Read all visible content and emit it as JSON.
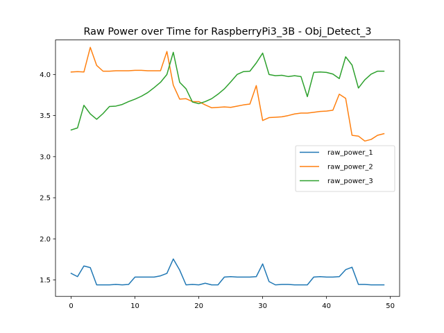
{
  "chart_data": {
    "type": "line",
    "title": "Raw Power over Time for RaspberryPi3_3B - Obj_Detect_3",
    "xlabel": "",
    "ylabel": "",
    "xlim": [
      -2.45,
      51.45
    ],
    "ylim": [
      1.3,
      4.42
    ],
    "xticks": [
      0,
      10,
      20,
      30,
      40,
      50
    ],
    "yticks": [
      1.5,
      2.0,
      2.5,
      3.0,
      3.5,
      4.0
    ],
    "xtick_labels": [
      "0",
      "10",
      "20",
      "30",
      "40",
      "50"
    ],
    "ytick_labels": [
      "1.5",
      "2.0",
      "2.5",
      "3.0",
      "3.5",
      "4.0"
    ],
    "grid": false,
    "legend_position": "center-right",
    "x": [
      0,
      1,
      2,
      3,
      4,
      5,
      6,
      7,
      8,
      9,
      10,
      11,
      12,
      13,
      14,
      15,
      16,
      17,
      18,
      19,
      20,
      21,
      22,
      23,
      24,
      25,
      26,
      27,
      28,
      29,
      30,
      31,
      32,
      33,
      34,
      35,
      36,
      37,
      38,
      39,
      40,
      41,
      42,
      43,
      44,
      45,
      46,
      47,
      48,
      49
    ],
    "series": [
      {
        "name": "raw_power_1",
        "color": "#1f77b4",
        "values": [
          1.58,
          1.54,
          1.67,
          1.65,
          1.44,
          1.44,
          1.44,
          1.445,
          1.44,
          1.445,
          1.535,
          1.535,
          1.535,
          1.535,
          1.55,
          1.58,
          1.755,
          1.62,
          1.44,
          1.445,
          1.44,
          1.46,
          1.44,
          1.44,
          1.535,
          1.54,
          1.535,
          1.535,
          1.535,
          1.54,
          1.695,
          1.48,
          1.44,
          1.445,
          1.445,
          1.44,
          1.44,
          1.44,
          1.535,
          1.54,
          1.535,
          1.535,
          1.54,
          1.625,
          1.655,
          1.445,
          1.445,
          1.44,
          1.44,
          1.44
        ]
      },
      {
        "name": "raw_power_2",
        "color": "#ff7f0e",
        "values": [
          4.03,
          4.035,
          4.03,
          4.33,
          4.11,
          4.04,
          4.04,
          4.045,
          4.045,
          4.045,
          4.05,
          4.05,
          4.045,
          4.045,
          4.045,
          4.28,
          3.87,
          3.7,
          3.705,
          3.67,
          3.67,
          3.63,
          3.595,
          3.6,
          3.605,
          3.6,
          3.615,
          3.63,
          3.64,
          3.865,
          3.44,
          3.475,
          3.48,
          3.485,
          3.5,
          3.52,
          3.53,
          3.53,
          3.54,
          3.55,
          3.555,
          3.565,
          3.76,
          3.71,
          3.26,
          3.25,
          3.19,
          3.21,
          3.26,
          3.28
        ]
      },
      {
        "name": "raw_power_3",
        "color": "#2ca02c",
        "values": [
          3.325,
          3.35,
          3.625,
          3.52,
          3.455,
          3.525,
          3.61,
          3.615,
          3.635,
          3.67,
          3.7,
          3.735,
          3.78,
          3.84,
          3.905,
          4.0,
          4.27,
          3.905,
          3.825,
          3.665,
          3.645,
          3.67,
          3.705,
          3.76,
          3.825,
          3.91,
          4.0,
          4.035,
          4.04,
          4.14,
          4.26,
          4.0,
          3.985,
          3.99,
          3.975,
          3.985,
          3.975,
          3.73,
          4.025,
          4.03,
          4.025,
          4.005,
          3.95,
          4.215,
          4.115,
          3.835,
          3.935,
          4.005,
          4.04,
          4.04
        ]
      }
    ]
  }
}
